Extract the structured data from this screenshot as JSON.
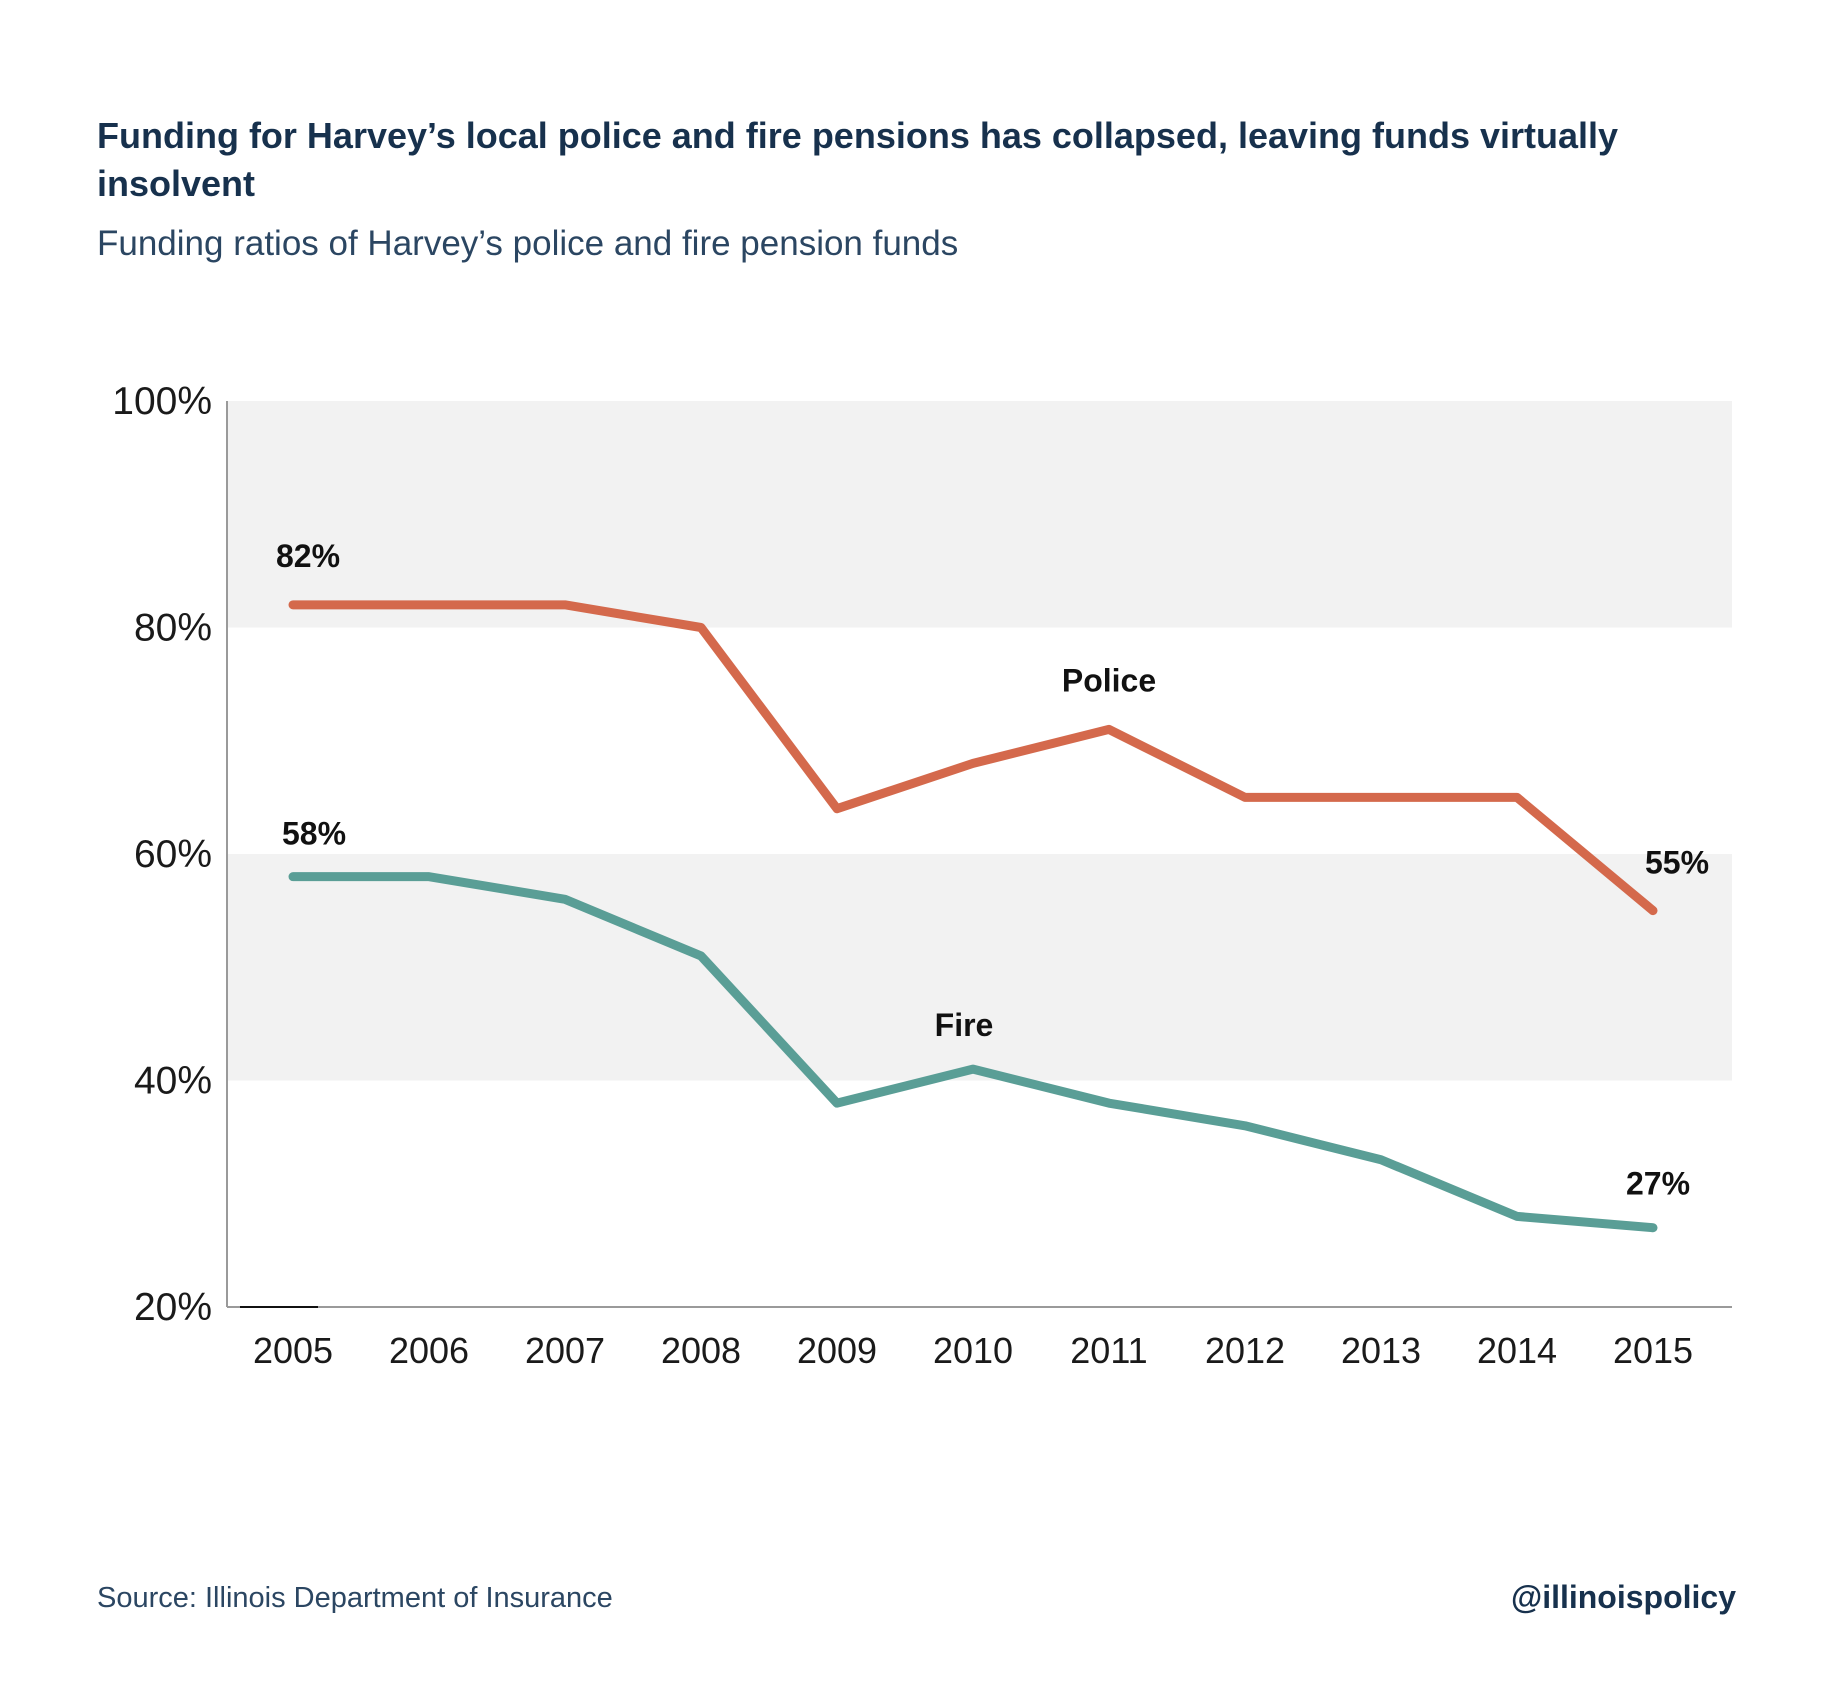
{
  "header": {
    "title": "Funding for Harvey’s local police and fire pensions has collapsed, leaving funds virtually insolvent",
    "subtitle": "Funding ratios of Harvey’s police and fire pension funds"
  },
  "footer": {
    "source": "Source: Illinois Department of Insurance",
    "handle": "@illinoispolicy"
  },
  "colors": {
    "police": "#d4694c",
    "fire": "#5a9e96",
    "band": "#f2f2f2",
    "axis": "#9a9a9a"
  },
  "chart_data": {
    "type": "line",
    "title": "Funding for Harvey’s local police and fire pensions has collapsed, leaving funds virtually insolvent",
    "subtitle": "Funding ratios of Harvey’s police and fire pension funds",
    "xlabel": "",
    "ylabel": "",
    "ylim": [
      20,
      100
    ],
    "yticks": [
      "20%",
      "40%",
      "60%",
      "80%",
      "100%"
    ],
    "ytick_values": [
      20,
      40,
      60,
      80,
      100
    ],
    "categories": [
      "2005",
      "2006",
      "2007",
      "2008",
      "2009",
      "2010",
      "2011",
      "2012",
      "2013",
      "2014",
      "2015"
    ],
    "bands": [
      [
        80,
        100
      ],
      [
        40,
        60
      ]
    ],
    "series": [
      {
        "name": "Police",
        "values": [
          82,
          82,
          82,
          80,
          64,
          68,
          71,
          65,
          65,
          65,
          55
        ],
        "annotations": [
          {
            "index": 0,
            "text": "82%"
          },
          {
            "index": 10,
            "text": "55%"
          }
        ]
      },
      {
        "name": "Fire",
        "values": [
          58,
          58,
          56,
          51,
          38,
          41,
          38,
          36,
          33,
          28,
          27
        ],
        "annotations": [
          {
            "index": 0,
            "text": "58%"
          },
          {
            "index": 10,
            "text": "27%"
          }
        ]
      }
    ],
    "legend": "inline labels"
  }
}
